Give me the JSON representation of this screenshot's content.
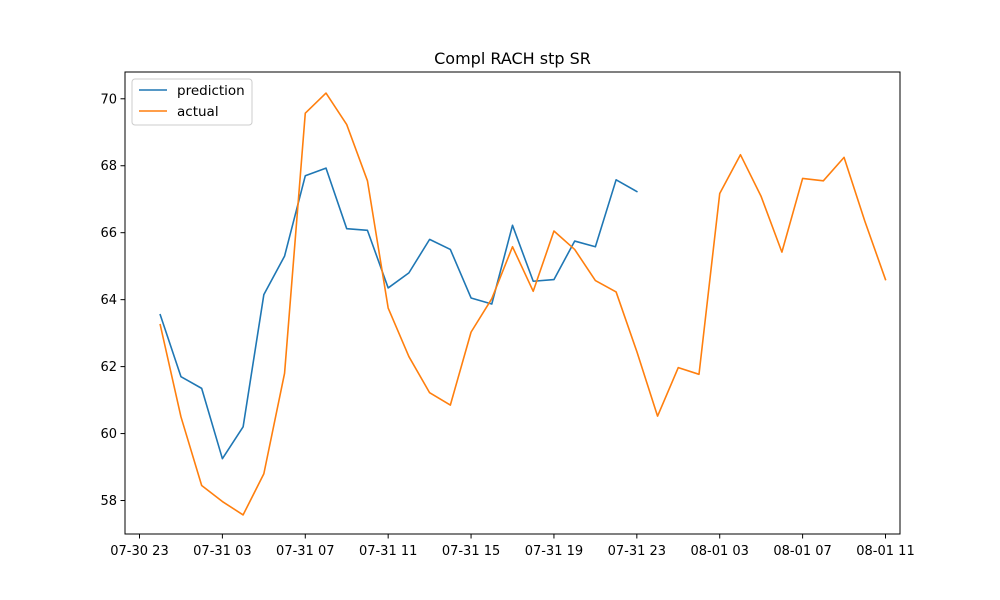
{
  "chart_data": {
    "type": "line",
    "title": "Compl RACH stp SR",
    "xlabel": "",
    "ylabel": "",
    "x_ticks": [
      "07-30 23",
      "07-31 03",
      "07-31 07",
      "07-31 11",
      "07-31 15",
      "07-31 19",
      "07-31 23",
      "08-01 03",
      "08-01 07",
      "08-01 11"
    ],
    "x_ticks_hours": [
      0,
      4,
      8,
      12,
      16,
      20,
      24,
      28,
      32,
      36
    ],
    "y_ticks": [
      58,
      60,
      62,
      64,
      66,
      68,
      70
    ],
    "xlim_hours": [
      -0.7,
      36.7
    ],
    "ylim": [
      57.0,
      70.8
    ],
    "grid": false,
    "legend_position": "top-left",
    "series": [
      {
        "name": "prediction",
        "color": "#1f77b4",
        "x_hours": [
          1,
          2,
          3,
          4,
          5,
          6,
          7,
          8,
          9,
          10,
          11,
          12,
          13,
          14,
          15,
          16,
          17,
          18,
          19,
          20,
          21,
          22,
          23,
          24
        ],
        "values": [
          63.55,
          61.7,
          61.35,
          59.25,
          60.2,
          64.15,
          65.3,
          67.7,
          67.93,
          66.12,
          66.07,
          64.35,
          64.8,
          65.8,
          65.5,
          64.05,
          63.87,
          66.22,
          64.55,
          64.6,
          65.75,
          65.58,
          67.58,
          67.23
        ]
      },
      {
        "name": "actual",
        "color": "#ff7f0e",
        "x_hours": [
          1,
          2,
          3,
          4,
          5,
          6,
          7,
          8,
          9,
          10,
          11,
          12,
          13,
          14,
          15,
          16,
          17,
          18,
          19,
          20,
          21,
          22,
          23,
          24,
          25,
          26,
          27,
          28,
          29,
          30,
          31,
          32,
          33,
          34,
          35,
          36
        ],
        "values": [
          63.25,
          60.5,
          58.45,
          57.97,
          57.57,
          58.8,
          61.8,
          69.57,
          70.17,
          69.23,
          67.55,
          63.75,
          62.3,
          61.22,
          60.85,
          63.03,
          64.03,
          65.58,
          64.25,
          66.05,
          65.5,
          64.57,
          64.23,
          62.45,
          60.52,
          61.97,
          61.77,
          67.17,
          68.33,
          67.08,
          65.42,
          67.62,
          67.55,
          68.25,
          66.35,
          64.6
        ]
      }
    ]
  }
}
